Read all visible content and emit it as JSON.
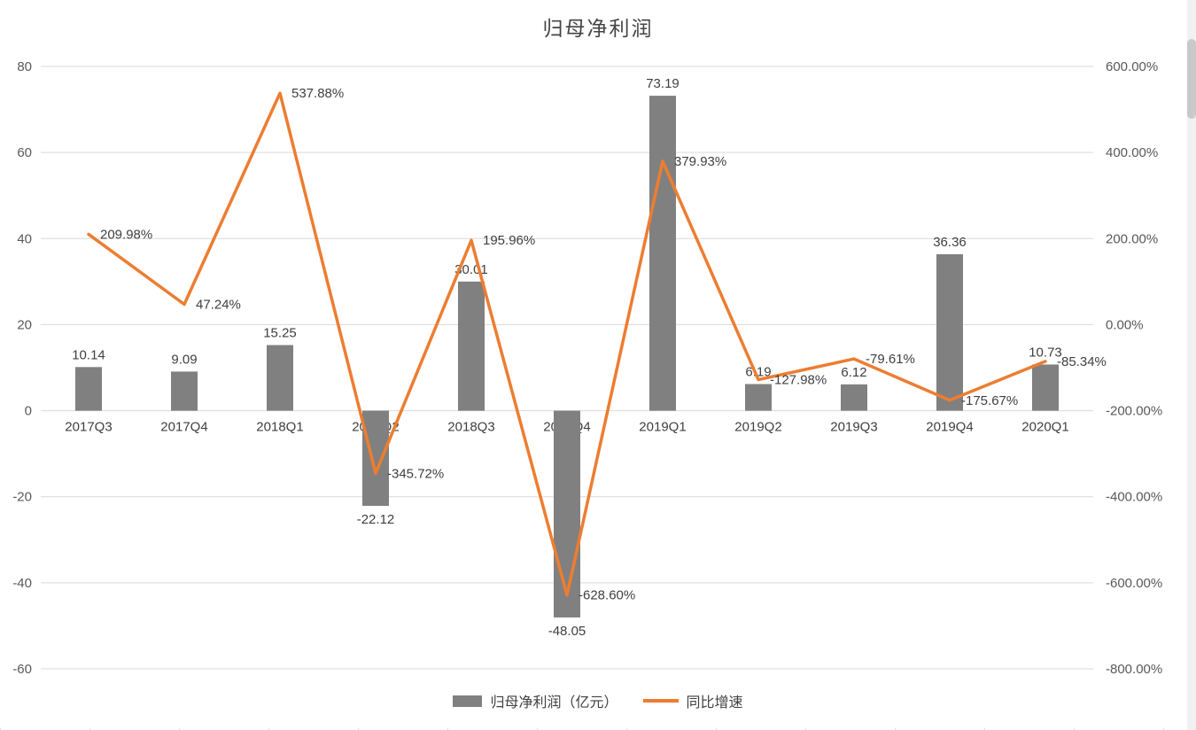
{
  "chart_data": {
    "type": "bar-line-combo",
    "title": "归母净利润",
    "categories": [
      "2017Q3",
      "2017Q4",
      "2018Q1",
      "2018Q2",
      "2018Q3",
      "2018Q4",
      "2019Q1",
      "2019Q2",
      "2019Q3",
      "2019Q4",
      "2020Q1"
    ],
    "series": [
      {
        "name": "归母净利润（亿元）",
        "type": "bar",
        "axis": "left",
        "color": "#808080",
        "values": [
          10.14,
          9.09,
          15.25,
          -22.12,
          30.01,
          -48.05,
          73.19,
          6.19,
          6.12,
          36.36,
          10.73
        ],
        "labels": [
          "10.14",
          "9.09",
          "15.25",
          "-22.12",
          "30.01",
          "-48.05",
          "73.19",
          "6.19",
          "6.12",
          "36.36",
          "10.73"
        ]
      },
      {
        "name": "同比增速",
        "type": "line",
        "axis": "right",
        "color": "#ED7D31",
        "values": [
          209.98,
          47.24,
          537.88,
          -345.72,
          195.96,
          -628.6,
          379.93,
          -127.98,
          -79.61,
          -175.67,
          -85.34
        ],
        "labels": [
          "209.98%",
          "47.24%",
          "537.88%",
          "-345.72%",
          "195.96%",
          "-628.60%",
          "379.93%",
          "-127.98%",
          "-79.61%",
          "-175.67%",
          "-85.34%"
        ]
      }
    ],
    "left_axis": {
      "min": -60,
      "max": 80,
      "step": 20,
      "ticks": [
        "80",
        "60",
        "40",
        "20",
        "0",
        "-20",
        "-40",
        "-60"
      ]
    },
    "right_axis": {
      "min": -800,
      "max": 600,
      "step": 200,
      "ticks": [
        "600.00%",
        "400.00%",
        "200.00%",
        "0.00%",
        "-200.00%",
        "-400.00%",
        "-600.00%",
        "-800.00%"
      ]
    },
    "grid": true,
    "legend_position": "bottom"
  },
  "legend": {
    "bar_label": "归母净利润（亿元）",
    "line_label": "同比增速"
  },
  "colors": {
    "bar": "#808080",
    "line": "#ED7D31",
    "grid": "#D9D9D9",
    "axis_text": "#595959",
    "text": "#3F3F3F",
    "background": "#FFFFFF"
  }
}
